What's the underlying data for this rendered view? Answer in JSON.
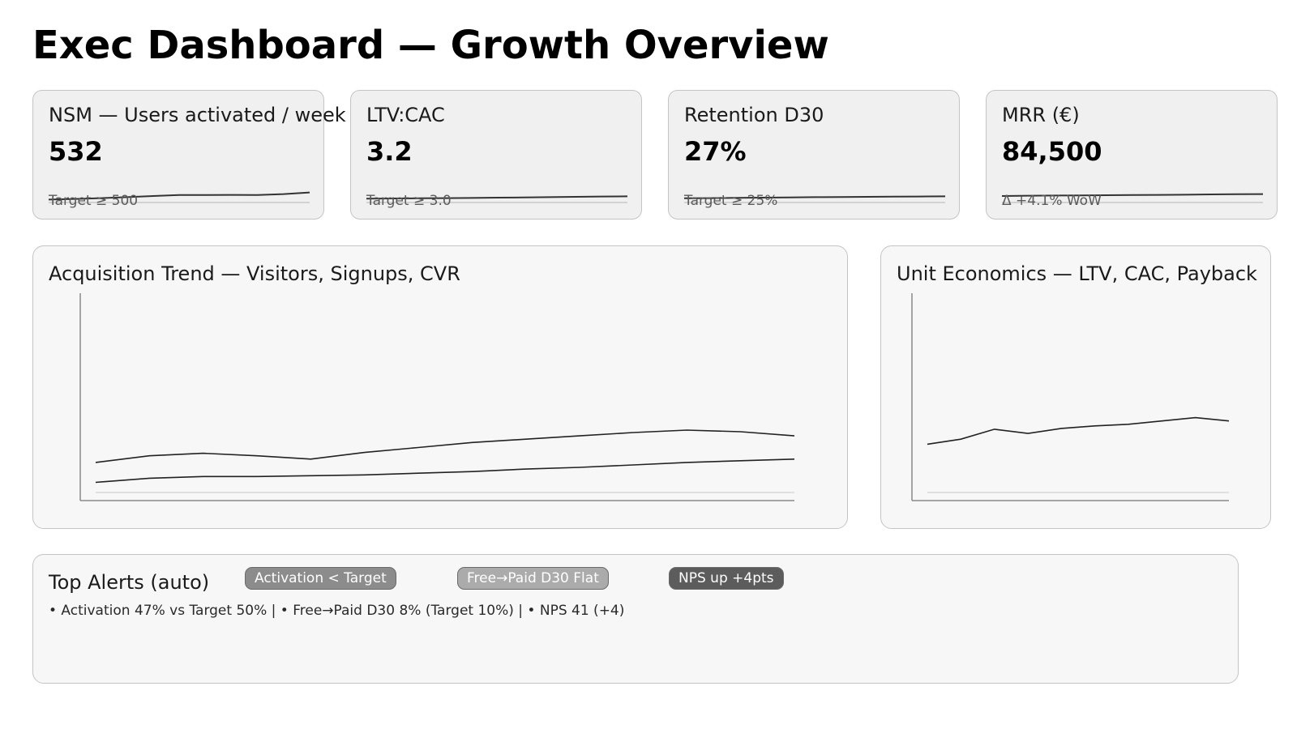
{
  "header": {
    "title": "Exec Dashboard — Growth Overview"
  },
  "kpis": [
    {
      "title": "NSM — Users activated / week",
      "value": "532",
      "note": "Target ≥ 500",
      "trend": [
        0.18,
        0.22,
        0.27,
        0.33,
        0.4,
        0.46,
        0.46,
        0.47,
        0.46,
        0.52,
        0.62
      ]
    },
    {
      "title": "LTV:CAC",
      "value": "3.2",
      "note": "Target ≥ 3.0",
      "trend": [
        0.24,
        0.25,
        0.26,
        0.27,
        0.28,
        0.3,
        0.31,
        0.33,
        0.35,
        0.37,
        0.38
      ]
    },
    {
      "title": "Retention D30",
      "value": "27%",
      "note": "Target ≥ 25%",
      "trend": [
        0.26,
        0.27,
        0.29,
        0.3,
        0.31,
        0.33,
        0.34,
        0.35,
        0.36,
        0.37,
        0.38
      ]
    },
    {
      "title": "MRR (€)",
      "value": "84,500",
      "note": "Δ +4.1% WoW",
      "trend": [
        0.4,
        0.42,
        0.43,
        0.44,
        0.45,
        0.46,
        0.47,
        0.48,
        0.5,
        0.51,
        0.52
      ]
    }
  ],
  "acquisition": {
    "title": "Acquisition Trend — Visitors, Signups, CVR",
    "chart_data": {
      "type": "line",
      "x": [
        1,
        2,
        3,
        4,
        5,
        6,
        7,
        8,
        9,
        10,
        11,
        12,
        13,
        14
      ],
      "series": [
        {
          "values": [
            46,
            54,
            57,
            54,
            50,
            58,
            64,
            70,
            74,
            78,
            82,
            85,
            83,
            78
          ]
        },
        {
          "values": [
            22,
            27,
            29,
            29,
            30,
            31,
            33,
            35,
            38,
            40,
            43,
            46,
            48,
            50
          ]
        }
      ],
      "ylim": [
        0,
        250
      ],
      "grid": false
    }
  },
  "unit_economics": {
    "title": "Unit Economics — LTV, CAC, Payback",
    "chart_data": {
      "type": "line",
      "x": [
        1,
        2,
        3,
        4,
        5,
        6,
        7,
        8,
        9,
        10
      ],
      "series": [
        {
          "values": [
            68,
            74,
            86,
            81,
            87,
            90,
            92,
            96,
            100,
            96
          ]
        }
      ],
      "ylim": [
        0,
        250
      ],
      "grid": false
    }
  },
  "alerts": {
    "title": "Top Alerts (auto)",
    "chips": [
      {
        "label": "Activation < Target",
        "color": "#8c8c8c"
      },
      {
        "label": "Free→Paid D30 Flat",
        "color": "#ababab"
      },
      {
        "label": "NPS up +4pts",
        "color": "#5c5c5c"
      }
    ],
    "detail": "• Activation 47% vs Target 50% | • Free→Paid D30 8% (Target 10%) | • NPS 41 (+4)"
  }
}
